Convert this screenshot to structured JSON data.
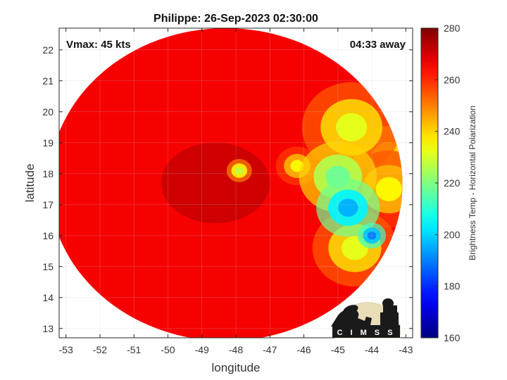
{
  "chart_data": {
    "type": "heatmap",
    "title": "Philippe: 26-Sep-2023 02:30:00",
    "xlabel": "longitude",
    "ylabel": "latitude",
    "xlim": [
      -53.2,
      -42.8
    ],
    "ylim": [
      12.7,
      22.7
    ],
    "x_ticks": [
      "-53",
      "-52",
      "-51",
      "-50",
      "-49",
      "-48",
      "-47",
      "-46",
      "-45",
      "-44",
      "-43"
    ],
    "x_tick_values": [
      -53,
      -52,
      -51,
      -50,
      -49,
      -48,
      -47,
      -46,
      -45,
      -44,
      -43
    ],
    "y_ticks": [
      "22",
      "21",
      "20",
      "19",
      "18",
      "17",
      "16",
      "15",
      "14",
      "13"
    ],
    "y_tick_values": [
      22,
      21,
      20,
      19,
      18,
      17,
      16,
      15,
      14,
      13
    ],
    "grid": true,
    "annotations": {
      "vmax": "Vmax: 45 kts",
      "time_away": "04:33 away"
    },
    "colorbar": {
      "label": "Brightness Temp - Horizontal Polarization",
      "range": [
        160,
        280
      ],
      "ticks": [
        "280",
        "260",
        "240",
        "220",
        "200",
        "180",
        "160"
      ],
      "tick_values": [
        280,
        260,
        240,
        220,
        200,
        180,
        160
      ],
      "colormap": "jet"
    },
    "swath": {
      "center": [
        -48.3,
        17.65
      ],
      "radius_lon": 5.2,
      "radius_lat": 5.05
    },
    "features": [
      {
        "lon": -47.9,
        "lat": 18.1,
        "tb": 228,
        "spread": 0.18
      },
      {
        "lon": -46.2,
        "lat": 18.25,
        "tb": 236,
        "spread": 0.3
      },
      {
        "lon": -45.0,
        "lat": 17.9,
        "tb": 218,
        "spread": 0.55
      },
      {
        "lon": -44.7,
        "lat": 16.9,
        "tb": 196,
        "spread": 0.45
      },
      {
        "lon": -44.0,
        "lat": 16.0,
        "tb": 190,
        "spread": 0.2
      },
      {
        "lon": -44.6,
        "lat": 19.5,
        "tb": 232,
        "spread": 0.7
      },
      {
        "lon": -43.5,
        "lat": 18.5,
        "tb": 240,
        "spread": 0.8
      },
      {
        "lon": -44.5,
        "lat": 15.6,
        "tb": 232,
        "spread": 0.6
      },
      {
        "lon": -43.5,
        "lat": 17.5,
        "tb": 236,
        "spread": 0.6
      }
    ]
  },
  "logo": {
    "text": "CIMSS"
  }
}
